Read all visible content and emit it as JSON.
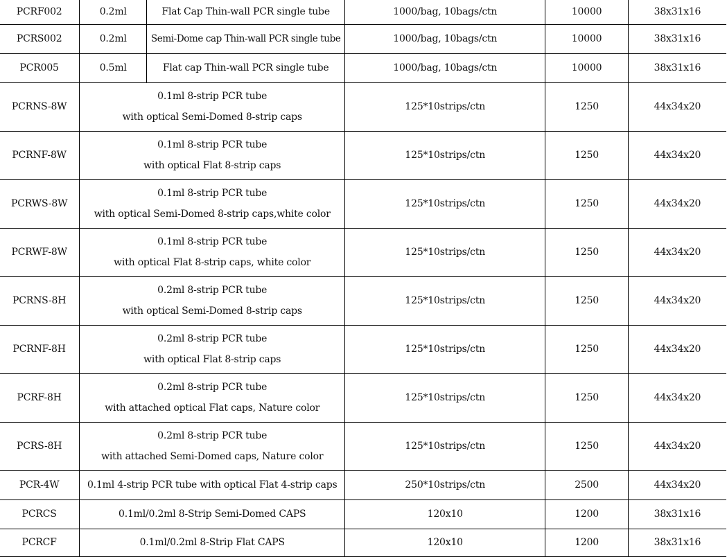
{
  "table": {
    "rows": [
      {
        "code": "PCRF002",
        "volume": "0.2ml",
        "description": [
          "Flat Cap Thin-wall PCR single tube"
        ],
        "packing": "1000/bag, 10bags/ctn",
        "quantity": "10000",
        "size": "38x31x16"
      },
      {
        "code": "PCRS002",
        "volume": "0.2ml",
        "description": [
          "Semi-Dome cap Thin-wall PCR single tube"
        ],
        "packing": "1000/bag, 10bags/ctn",
        "quantity": "10000",
        "size": "38x31x16"
      },
      {
        "code": "PCR005",
        "volume": "0.5ml",
        "description": [
          "Flat cap Thin-wall PCR single tube"
        ],
        "packing": "1000/bag, 10bags/ctn",
        "quantity": "10000",
        "size": "38x31x16"
      },
      {
        "code": "PCRNS-8W",
        "description": [
          "0.1ml 8-strip PCR tube",
          "with optical Semi-Domed 8-strip caps"
        ],
        "packing": "125*10strips/ctn",
        "quantity": "1250",
        "size": "44x34x20"
      },
      {
        "code": "PCRNF-8W",
        "description": [
          "0.1ml 8-strip PCR tube",
          "with optical Flat 8-strip caps"
        ],
        "packing": "125*10strips/ctn",
        "quantity": "1250",
        "size": "44x34x20"
      },
      {
        "code": "PCRWS-8W",
        "description": [
          "0.1ml 8-strip PCR tube",
          "with optical Semi-Domed 8-strip caps,white color"
        ],
        "packing": "125*10strips/ctn",
        "quantity": "1250",
        "size": "44x34x20"
      },
      {
        "code": "PCRWF-8W",
        "description": [
          "0.1ml 8-strip PCR tube",
          "with optical Flat 8-strip caps, white color"
        ],
        "packing": "125*10strips/ctn",
        "quantity": "1250",
        "size": "44x34x20"
      },
      {
        "code": "PCRNS-8H",
        "description": [
          "0.2ml 8-strip PCR tube",
          "with optical Semi-Domed 8-strip caps"
        ],
        "packing": "125*10strips/ctn",
        "quantity": "1250",
        "size": "44x34x20"
      },
      {
        "code": "PCRNF-8H",
        "description": [
          "0.2ml 8-strip PCR tube",
          "with optical Flat 8-strip caps"
        ],
        "packing": "125*10strips/ctn",
        "quantity": "1250",
        "size": "44x34x20"
      },
      {
        "code": "PCRF-8H",
        "description": [
          "0.2ml 8-strip PCR tube",
          "with attached optical Flat caps, Nature color"
        ],
        "packing": "125*10strips/ctn",
        "quantity": "1250",
        "size": "44x34x20"
      },
      {
        "code": "PCRS-8H",
        "description": [
          "0.2ml 8-strip PCR tube",
          "with attached Semi-Domed caps, Nature color"
        ],
        "packing": "125*10strips/ctn",
        "quantity": "1250",
        "size": "44x34x20"
      },
      {
        "code": "PCR-4W",
        "description": [
          "0.1ml 4-strip PCR tube with optical Flat 4-strip caps"
        ],
        "packing": "250*10strips/ctn",
        "quantity": "2500",
        "size": "44x34x20"
      },
      {
        "code": "PCRCS",
        "description": [
          "0.1ml/0.2ml 8-Strip Semi-Domed  CAPS"
        ],
        "packing": "120x10",
        "quantity": "1200",
        "size": "38x31x16"
      },
      {
        "code": "PCRCF",
        "description": [
          "0.1ml/0.2ml 8-Strip Flat CAPS"
        ],
        "packing": "120x10",
        "quantity": "1200",
        "size": "38x31x16"
      }
    ]
  }
}
